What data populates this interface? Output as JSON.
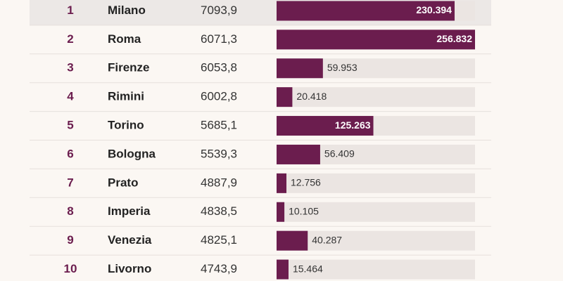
{
  "chart_data": {
    "type": "table-bar",
    "rows": [
      {
        "rank": 1,
        "city": "Milano",
        "index": "7093,9",
        "value": 230394,
        "value_label": "230.394"
      },
      {
        "rank": 2,
        "city": "Roma",
        "index": "6071,3",
        "value": 256832,
        "value_label": "256.832"
      },
      {
        "rank": 3,
        "city": "Firenze",
        "index": "6053,8",
        "value": 59953,
        "value_label": "59.953"
      },
      {
        "rank": 4,
        "city": "Rimini",
        "index": "6002,8",
        "value": 20418,
        "value_label": "20.418"
      },
      {
        "rank": 5,
        "city": "Torino",
        "index": "5685,1",
        "value": 125263,
        "value_label": "125.263"
      },
      {
        "rank": 6,
        "city": "Bologna",
        "index": "5539,3",
        "value": 56409,
        "value_label": "56.409"
      },
      {
        "rank": 7,
        "city": "Prato",
        "index": "4887,9",
        "value": 12756,
        "value_label": "12.756"
      },
      {
        "rank": 8,
        "city": "Imperia",
        "index": "4838,5",
        "value": 10105,
        "value_label": "10.105"
      },
      {
        "rank": 9,
        "city": "Venezia",
        "index": "4825,1",
        "value": 40287,
        "value_label": "40.287"
      },
      {
        "rank": 10,
        "city": "Livorno",
        "index": "4743,9",
        "value": 15464,
        "value_label": "15.464"
      }
    ],
    "bar_color": "#6b1d4e",
    "track_color": "#ebe5e2",
    "rank_color": "#6b1d4e"
  }
}
